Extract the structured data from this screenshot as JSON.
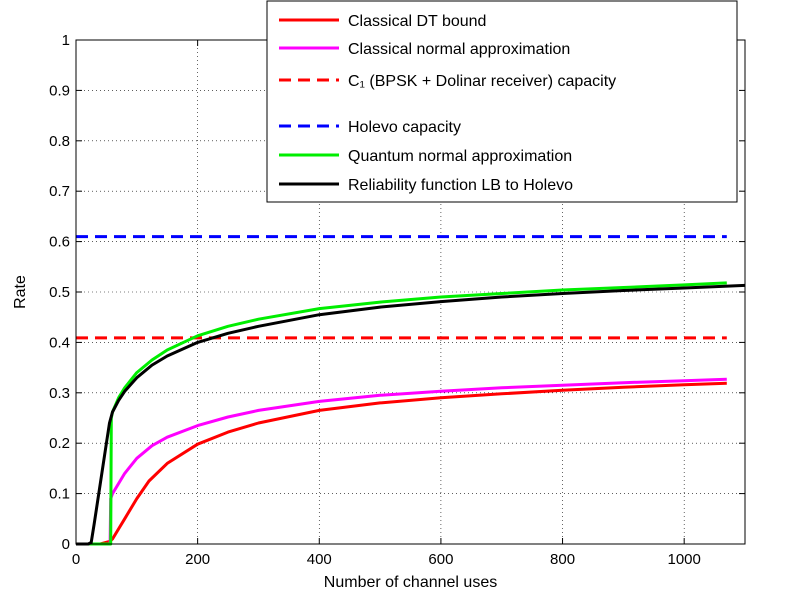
{
  "chart_data": {
    "type": "line",
    "title": "",
    "xlabel": "Number of channel uses",
    "ylabel": "Rate",
    "xlim": [
      0,
      1100
    ],
    "ylim": [
      0,
      1
    ],
    "xticks": [
      0,
      200,
      400,
      600,
      800,
      1000
    ],
    "yticks": [
      0,
      0.1,
      0.2,
      0.3,
      0.4,
      0.5,
      0.6,
      0.7,
      0.8,
      0.9,
      1
    ],
    "xtick_labels": [
      "0",
      "200",
      "400",
      "600",
      "800",
      "1000"
    ],
    "ytick_labels": [
      "0",
      "0.1",
      "0.2",
      "0.3",
      "0.4",
      "0.5",
      "0.6",
      "0.7",
      "0.8",
      "0.9",
      "1"
    ],
    "grid": true,
    "legend_position": "top-right",
    "series": [
      {
        "name": "Classical DT bound",
        "color": "#ff0000",
        "style": "solid",
        "x": [
          0,
          20,
          40,
          55,
          60,
          70,
          80,
          100,
          120,
          150,
          200,
          250,
          300,
          400,
          500,
          600,
          700,
          800,
          900,
          1000,
          1070
        ],
        "y": [
          0,
          0,
          0,
          0.005,
          0.01,
          0.03,
          0.05,
          0.09,
          0.125,
          0.16,
          0.198,
          0.222,
          0.24,
          0.265,
          0.28,
          0.29,
          0.298,
          0.305,
          0.311,
          0.316,
          0.319
        ]
      },
      {
        "name": "Classical normal approximation",
        "color": "#ff00ff",
        "style": "solid",
        "x": [
          0,
          56,
          57,
          60,
          70,
          80,
          100,
          125,
          150,
          200,
          250,
          300,
          400,
          500,
          600,
          700,
          800,
          900,
          1000,
          1070
        ],
        "y": [
          0,
          0,
          0.09,
          0.1,
          0.12,
          0.14,
          0.17,
          0.195,
          0.212,
          0.235,
          0.252,
          0.265,
          0.283,
          0.295,
          0.303,
          0.31,
          0.315,
          0.32,
          0.324,
          0.327
        ]
      },
      {
        "name": "C₁ (BPSK + Dolinar receiver) capacity",
        "color": "#ff0000",
        "style": "dashed",
        "x": [
          0,
          1070
        ],
        "y": [
          0.409,
          0.409
        ]
      },
      {
        "name": "Holevo capacity",
        "color": "#0000ff",
        "style": "dashed",
        "x": [
          0,
          1070
        ],
        "y": [
          0.61,
          0.61
        ]
      },
      {
        "name": "Quantum normal approximation",
        "color": "#00ee00",
        "style": "solid",
        "x": [
          0,
          57,
          58,
          60,
          70,
          80,
          100,
          125,
          150,
          200,
          250,
          300,
          400,
          500,
          600,
          700,
          800,
          900,
          1000,
          1070
        ],
        "y": [
          0,
          0,
          0.25,
          0.262,
          0.29,
          0.31,
          0.34,
          0.365,
          0.385,
          0.413,
          0.432,
          0.446,
          0.467,
          0.48,
          0.49,
          0.497,
          0.504,
          0.509,
          0.514,
          0.518
        ]
      },
      {
        "name": "Reliability function LB to Holevo",
        "color": "#000000",
        "style": "solid",
        "x": [
          0,
          20,
          25,
          30,
          40,
          50,
          55,
          60,
          70,
          80,
          100,
          125,
          150,
          200,
          250,
          300,
          400,
          500,
          600,
          700,
          800,
          900,
          1000,
          1100
        ],
        "y": [
          0,
          0,
          0.003,
          0.04,
          0.12,
          0.2,
          0.24,
          0.262,
          0.285,
          0.303,
          0.33,
          0.355,
          0.373,
          0.4,
          0.418,
          0.432,
          0.455,
          0.47,
          0.481,
          0.49,
          0.497,
          0.503,
          0.508,
          0.513
        ]
      }
    ]
  }
}
